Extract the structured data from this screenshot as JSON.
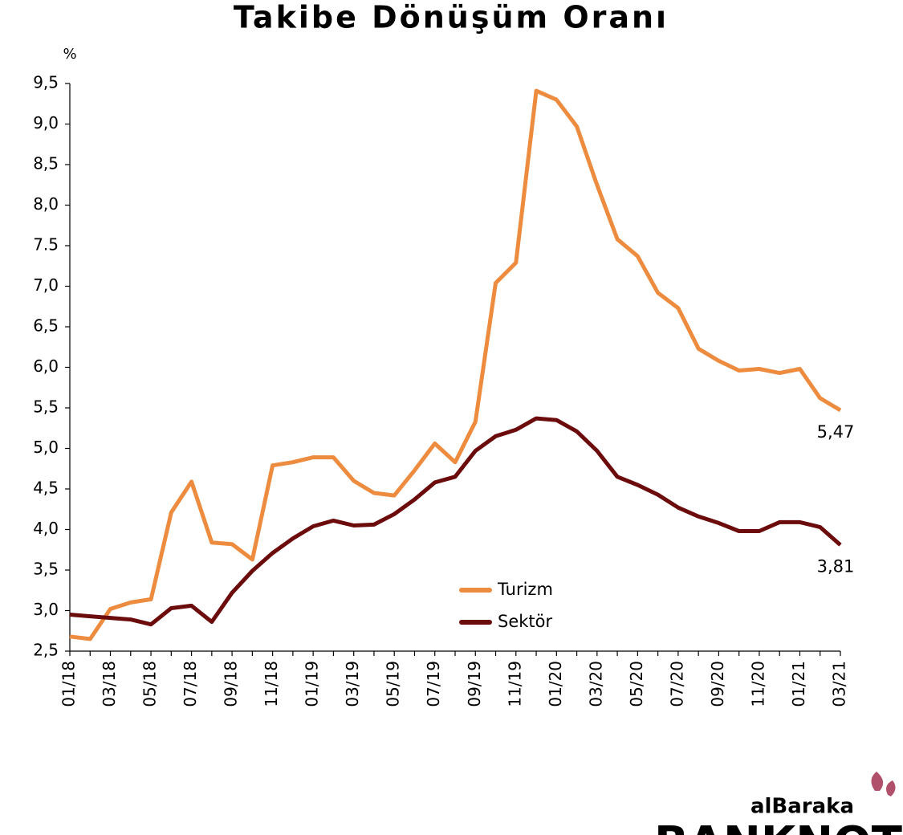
{
  "chart_data": {
    "type": "line",
    "title": "Takibe Dönüşüm Oranı",
    "y_label": "%",
    "categories": [
      "01/18",
      null,
      "03/18",
      null,
      "05/18",
      null,
      "07/18",
      null,
      "09/18",
      null,
      "11/18",
      null,
      "01/19",
      null,
      "03/19",
      null,
      "05/19",
      null,
      "07/19",
      null,
      "09/19",
      null,
      "11/19",
      null,
      "01/20",
      null,
      "03/20",
      null,
      "05/20",
      null,
      "07/20",
      null,
      "09/20",
      null,
      "11/20",
      null,
      "01/21",
      null,
      "03/21"
    ],
    "series": [
      {
        "name": "Turizm",
        "color": "#ED8B3F",
        "values": [
          2.68,
          2.65,
          3.02,
          3.1,
          3.14,
          4.21,
          4.59,
          3.84,
          3.82,
          3.63,
          4.79,
          4.83,
          4.89,
          4.89,
          4.6,
          4.45,
          4.42,
          4.73,
          5.06,
          4.83,
          5.33,
          7.04,
          7.29,
          9.41,
          9.3,
          8.97,
          8.25,
          7.58,
          7.37,
          6.92,
          6.73,
          6.23,
          6.08,
          5.96,
          5.98,
          5.93,
          5.98,
          5.62,
          5.47
        ],
        "value_labels": [
          null,
          null,
          null,
          null,
          null,
          null,
          null,
          null,
          null,
          null,
          null,
          null,
          null,
          null,
          null,
          null,
          null,
          null,
          null,
          null,
          null,
          null,
          null,
          null,
          null,
          null,
          null,
          null,
          null,
          null,
          null,
          null,
          null,
          null,
          null,
          null,
          null,
          null,
          "5,47"
        ]
      },
      {
        "name": "Sektör",
        "color": "#6B0B0B",
        "values": [
          2.95,
          2.93,
          2.91,
          2.89,
          2.83,
          3.03,
          3.06,
          2.86,
          3.22,
          3.49,
          3.71,
          3.89,
          4.04,
          4.11,
          4.05,
          4.06,
          4.19,
          4.37,
          4.58,
          4.65,
          4.97,
          5.15,
          5.23,
          5.37,
          5.35,
          5.21,
          4.97,
          4.65,
          4.55,
          4.43,
          4.27,
          4.16,
          4.08,
          3.98,
          3.98,
          4.09,
          4.09,
          4.03,
          3.81
        ],
        "value_labels": [
          null,
          null,
          null,
          null,
          null,
          null,
          null,
          null,
          null,
          null,
          null,
          null,
          null,
          null,
          null,
          null,
          null,
          null,
          null,
          null,
          null,
          null,
          null,
          null,
          null,
          null,
          null,
          null,
          null,
          null,
          null,
          null,
          null,
          null,
          null,
          null,
          null,
          null,
          "3,81"
        ]
      }
    ],
    "ylim": [
      2.5,
      9.5
    ],
    "yticks": [
      {
        "value": 2.5,
        "label": "2,5"
      },
      {
        "value": 3.0,
        "label": "3,0"
      },
      {
        "value": 3.5,
        "label": "3,5"
      },
      {
        "value": 4.0,
        "label": "4,0"
      },
      {
        "value": 4.5,
        "label": "4,5"
      },
      {
        "value": 5.0,
        "label": "5,0"
      },
      {
        "value": 5.5,
        "label": "5,5"
      },
      {
        "value": 6.0,
        "label": "6,0"
      },
      {
        "value": 6.5,
        "label": "6,5"
      },
      {
        "value": 7.0,
        "label": "7,0"
      },
      {
        "value": 7.5,
        "label": "7.5"
      },
      {
        "value": 8.0,
        "label": "8,0"
      },
      {
        "value": 8.5,
        "label": "8,5"
      },
      {
        "value": 9.0,
        "label": "9,0"
      },
      {
        "value": 9.5,
        "label": "9,5"
      }
    ],
    "grid": false,
    "legend": "bottom"
  },
  "branding": {
    "name": "alBaraka",
    "product": "BANKNOT"
  }
}
